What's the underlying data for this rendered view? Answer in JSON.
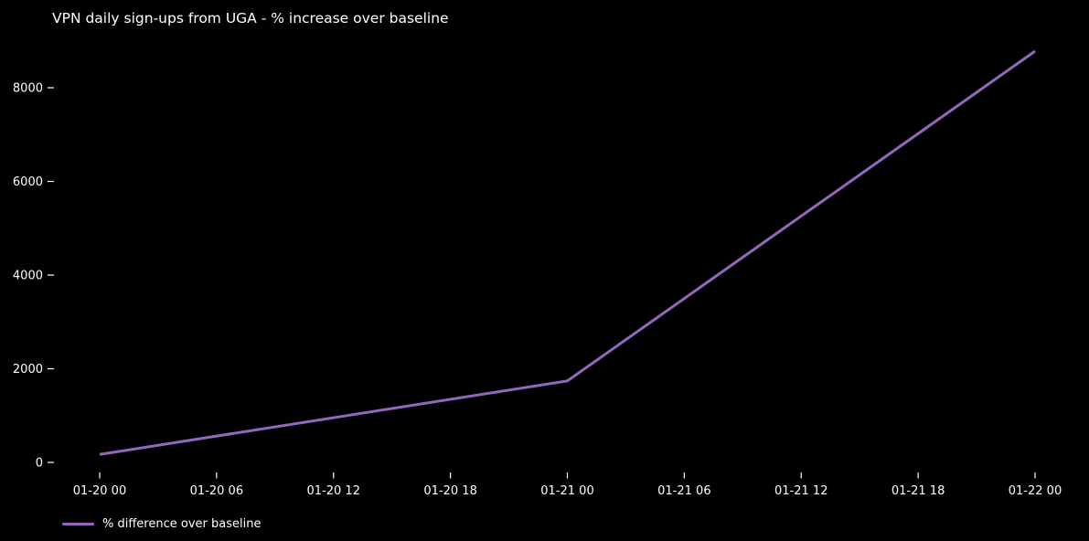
{
  "chart_data": {
    "type": "line",
    "title": "VPN daily sign-ups from UGA - % increase over baseline",
    "xlabel": "",
    "ylabel": "",
    "x_tick_labels": [
      "01-20 00",
      "01-20 06",
      "01-20 12",
      "01-20 18",
      "01-21 00",
      "01-21 06",
      "01-21 12",
      "01-21 18",
      "01-22 00"
    ],
    "x_tick_hours": [
      0,
      6,
      12,
      18,
      24,
      30,
      36,
      42,
      48
    ],
    "y_ticks": [
      0,
      2000,
      4000,
      6000,
      8000
    ],
    "ylim": [
      -200,
      9200
    ],
    "grid": false,
    "legend_position": "lower left",
    "series": [
      {
        "name": "% difference over baseline",
        "x_labels": [
          "01-20 00",
          "01-21 00",
          "01-22 00"
        ],
        "x_hours": [
          0,
          24,
          48
        ],
        "values": [
          170,
          1740,
          8780
        ]
      }
    ]
  },
  "colors": {
    "background": "#000000",
    "text": "#ffffff",
    "line": "#9467bd"
  }
}
